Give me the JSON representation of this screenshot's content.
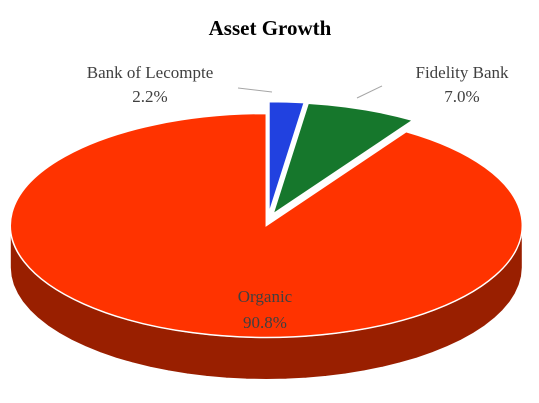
{
  "chart_data": {
    "type": "pie",
    "title": "Asset Growth",
    "categories": [
      "Bank of Lecompte",
      "Fidelity Bank",
      "Organic"
    ],
    "values": [
      2.2,
      7.0,
      90.8
    ],
    "value_labels": [
      "2.2%",
      "7.0%",
      "90.8%"
    ],
    "colors": [
      "#2141e0",
      "#16772c",
      "#ff3300"
    ]
  }
}
